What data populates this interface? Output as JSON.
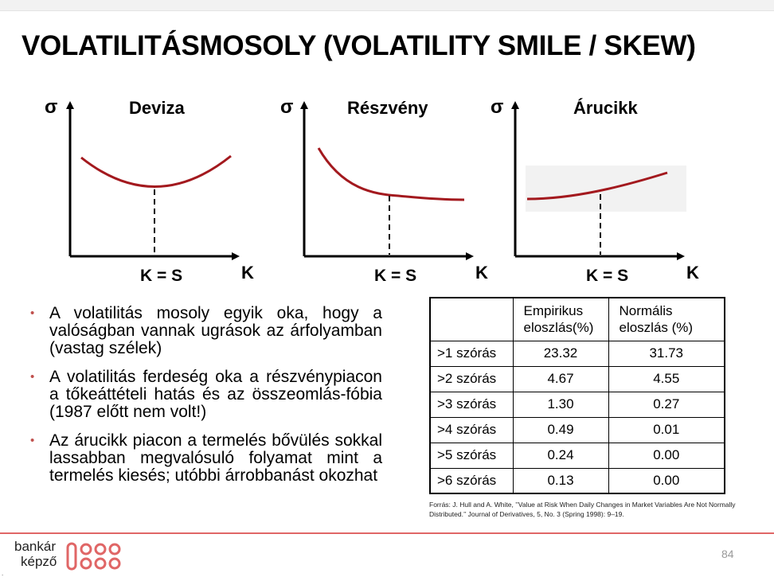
{
  "title": "VOLATILITÁSMOSOLY (VOLATILITY SMILE / SKEW)",
  "charts": [
    {
      "name": "deviza",
      "y_label": "σ",
      "panel_title": "Deviza",
      "marker_label": "K = S",
      "x_label": "K"
    },
    {
      "name": "reszveny",
      "y_label": "σ",
      "panel_title": "Részvény",
      "marker_label": "K = S",
      "x_label": "K"
    },
    {
      "name": "arucikk",
      "y_label": "σ",
      "panel_title": "Árucikk",
      "marker_label": "K = S",
      "x_label": "K"
    }
  ],
  "bullets": [
    "A volatilitás mosoly egyik oka, hogy a valóságban vannak ugrások az árfolyamban (vastag szélek)",
    "A volatilitás ferdeség oka a részvénypiacon a tőkeáttételi hatás és az összeomlás-fóbia (1987 előtt nem volt!)",
    "Az árucikk piacon a termelés bővülés sokkal lassabban megvalósuló folyamat mint a termelés kiesés; utóbbi árrobbanást okozhat"
  ],
  "table": {
    "headers": [
      "",
      "Empirikus eloszlás(%)",
      "Normális eloszlás (%)"
    ],
    "rows": [
      [
        ">1 szórás",
        "23.32",
        "31.73"
      ],
      [
        ">2 szórás",
        "4.67",
        "4.55"
      ],
      [
        ">3 szórás",
        "1.30",
        "0.27"
      ],
      [
        ">4 szórás",
        "0.49",
        "0.01"
      ],
      [
        ">5 szórás",
        "0.24",
        "0.00"
      ],
      [
        ">6 szórás",
        "0.13",
        "0.00"
      ]
    ]
  },
  "source": "Forrás: J. Hull and A. White, ’’Value at Risk When Daily Changes in Market Variables Are Not Normally Distributed.’’ Journal of Derivatives, 5, No. 3 (Spring 1998): 9–19.",
  "footer": {
    "logo_line1": "bankár",
    "logo_line2": "képző",
    "page_number": "84",
    "corner_mark": "."
  },
  "colors": {
    "curve": "#a3191e",
    "accent": "#e06666",
    "bullet": "#c0504d"
  }
}
